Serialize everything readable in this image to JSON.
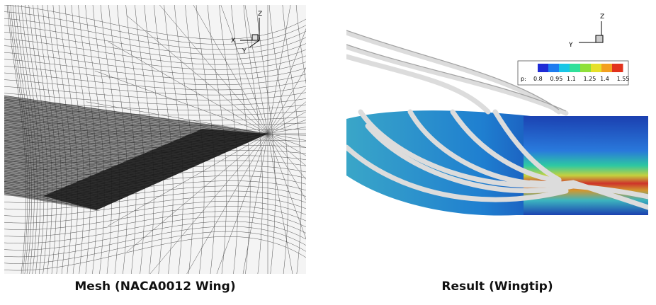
{
  "captions": {
    "mesh": "Mesh (NACA0012 Wing)",
    "result": "Result (Wingtip)"
  },
  "mesh_axes": {
    "z": "Z",
    "x": "X",
    "y": "Y"
  },
  "result_axes": {
    "z": "Z",
    "y": "Y"
  },
  "colorbar": {
    "label": "p:",
    "ticks": [
      "0.8",
      "0.95",
      "1.1",
      "1.25",
      "1.4",
      "1.55"
    ],
    "colors": [
      "#1f2bd6",
      "#1e7cf0",
      "#18c6e6",
      "#2fe09a",
      "#8fe03a",
      "#e6e02a",
      "#f3a020",
      "#e2321c"
    ]
  }
}
